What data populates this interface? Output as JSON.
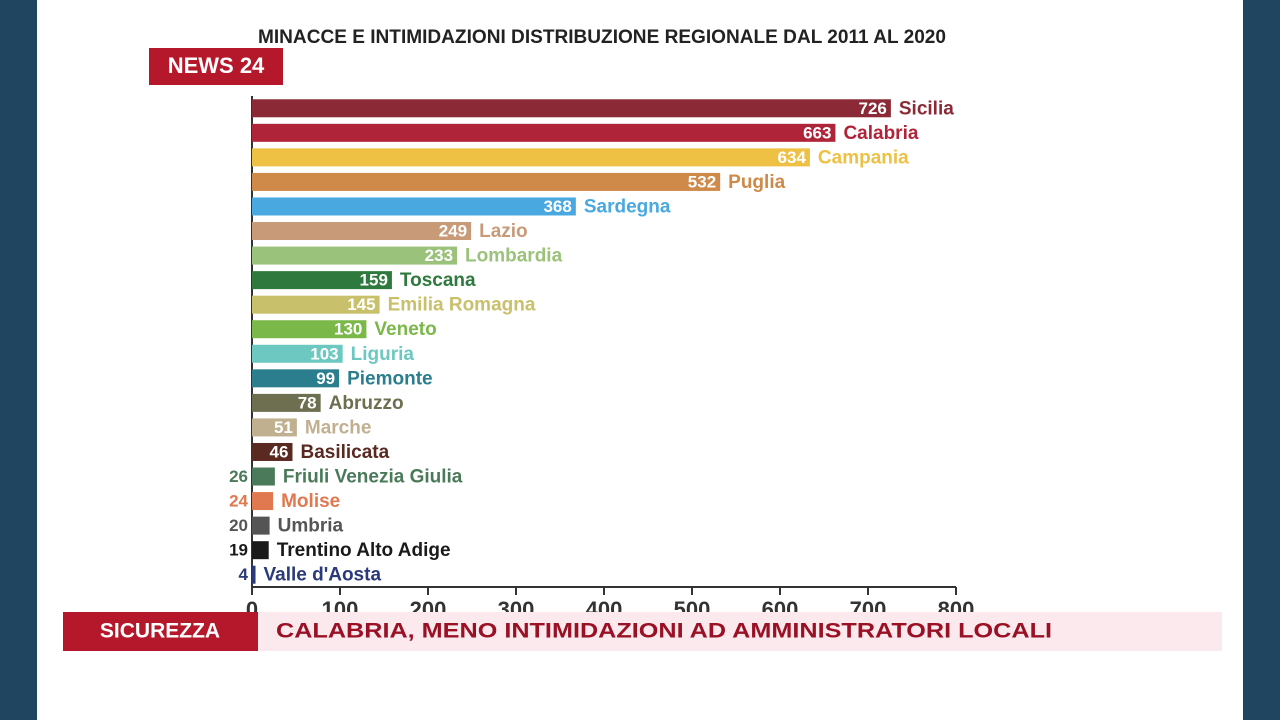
{
  "chart_data": {
    "type": "bar",
    "orientation": "horizontal",
    "title": "MINACCE E INTIMIDAZIONI DISTRIBUZIONE REGIONALE DAL 2011 AL 2020",
    "categories": [
      "Sicilia",
      "Calabria",
      "Campania",
      "Puglia",
      "Sardegna",
      "Lazio",
      "Lombardia",
      "Toscana",
      "Emilia Romagna",
      "Veneto",
      "Liguria",
      "Piemonte",
      "Abruzzo",
      "Marche",
      "Basilicata",
      "Friuli Venezia Giulia",
      "Molise",
      "Umbria",
      "Trentino Alto Adige",
      "Valle d'Aosta"
    ],
    "values": [
      726,
      663,
      634,
      532,
      368,
      249,
      233,
      159,
      145,
      130,
      103,
      99,
      78,
      51,
      46,
      26,
      24,
      20,
      19,
      4
    ],
    "colors": [
      "#8b2a36",
      "#b0243a",
      "#eec044",
      "#cf8a4a",
      "#4aa8e0",
      "#c89a78",
      "#9ac27a",
      "#2e7a3e",
      "#c8c06a",
      "#7ab84a",
      "#6cc8c0",
      "#2a7e8e",
      "#6e6e50",
      "#c0b090",
      "#5a2a22",
      "#4a7a5a",
      "#e07850",
      "#555555",
      "#1a1a1a",
      "#2a3a7a"
    ],
    "xlim": [
      0,
      800
    ],
    "xticks": [
      0,
      100,
      200,
      300,
      400,
      500,
      600,
      700,
      800
    ]
  },
  "logo": "NEWS 24",
  "ticker": {
    "section": "SICUREZZA",
    "headline": "CALABRIA, MENO INTIMIDAZIONI AD AMMINISTRATORI LOCALI"
  }
}
